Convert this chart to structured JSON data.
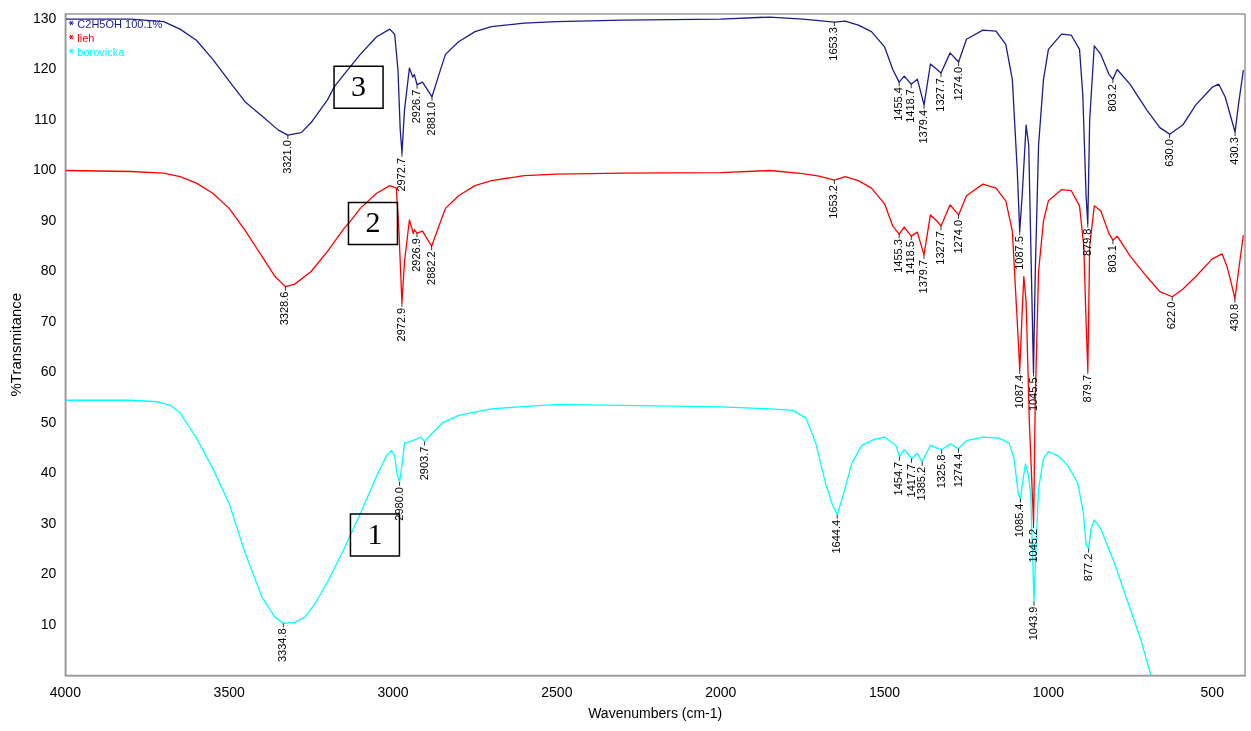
{
  "chart_data": {
    "type": "line",
    "xlabel": "Wavenumbers (cm-1)",
    "ylabel": "%Transmitance",
    "xlim": [
      4000,
      400
    ],
    "xticks": [
      4000,
      3500,
      3000,
      2500,
      2000,
      1500,
      1000,
      500
    ],
    "ylim": [
      0,
      131
    ],
    "yticks": [
      10,
      20,
      30,
      40,
      50,
      60,
      70,
      80,
      90,
      100,
      110,
      120,
      130
    ],
    "grid": false,
    "legend": "top left",
    "series": [
      {
        "name": "C2H5OH 100.1%",
        "color": "#1c1c8c",
        "x": [
          4000,
          3800,
          3700,
          3650,
          3600,
          3550,
          3500,
          3450,
          3400,
          3350,
          3321,
          3280,
          3250,
          3200,
          3180,
          3150,
          3100,
          3050,
          3010,
          2995,
          2985,
          2978,
          2972.7,
          2965,
          2950,
          2940,
          2935,
          2926.7,
          2910,
          2881,
          2860,
          2840,
          2800,
          2750,
          2700,
          2600,
          2500,
          2300,
          2000,
          1850,
          1750,
          1700,
          1653.3,
          1620,
          1580,
          1540,
          1500,
          1475,
          1455.4,
          1440,
          1418.7,
          1400,
          1379.4,
          1360,
          1340,
          1327.7,
          1300,
          1274,
          1250,
          1200,
          1160,
          1130,
          1110,
          1095,
          1087.5,
          1080,
          1068,
          1060,
          1052,
          1045.5,
          1040,
          1030,
          1015,
          1000,
          960,
          930,
          905,
          895,
          885,
          879.8,
          874,
          860,
          840,
          815,
          803.2,
          790,
          750,
          700,
          660,
          630,
          590,
          550,
          500,
          480,
          460,
          445,
          430.3,
          420,
          405
        ],
        "values": [
          130,
          130,
          129.5,
          128,
          125.8,
          122,
          117.7,
          113.5,
          110.8,
          108,
          107,
          107.5,
          109.5,
          114,
          116.5,
          119,
          123,
          126.5,
          128,
          127,
          120,
          108,
          103.5,
          112,
          120.3,
          118.5,
          119,
          117,
          117.5,
          114.6,
          119,
          123,
          125.5,
          127.5,
          128.5,
          129.2,
          129.5,
          129.8,
          130,
          130.4,
          130,
          129.7,
          129.4,
          129.6,
          128.8,
          127.5,
          124.5,
          120,
          117.5,
          118.7,
          117.1,
          118.1,
          113,
          121.1,
          120,
          119.3,
          123.3,
          121.5,
          126,
          127.8,
          127.6,
          125,
          118,
          100,
          88,
          95,
          109,
          105,
          80,
          60,
          80,
          105,
          118,
          124,
          127,
          126.8,
          124,
          115,
          95,
          89.5,
          110,
          124.7,
          123,
          119,
          118.1,
          120,
          117,
          112,
          108.5,
          107.2,
          109,
          113,
          116.5,
          117.1,
          114.5,
          111,
          107.6,
          113,
          119.9
        ]
      },
      {
        "name": "lieh",
        "color": "#ff0000",
        "x": [
          4000,
          3800,
          3700,
          3650,
          3600,
          3550,
          3500,
          3450,
          3400,
          3360,
          3328.6,
          3300,
          3250,
          3200,
          3150,
          3136,
          3100,
          3050,
          3010,
          2990,
          2982,
          2972.9,
          2965,
          2950,
          2938,
          2935,
          2926.9,
          2910,
          2882.2,
          2860,
          2840,
          2800,
          2750,
          2700,
          2600,
          2500,
          2300,
          2000,
          1850,
          1750,
          1700,
          1653.2,
          1620,
          1580,
          1540,
          1500,
          1475,
          1455.3,
          1440,
          1418.5,
          1400,
          1379.7,
          1360,
          1340,
          1327.7,
          1300,
          1274,
          1250,
          1200,
          1160,
          1130,
          1110,
          1095,
          1087.4,
          1080,
          1075,
          1068,
          1058,
          1045.2,
          1040,
          1030,
          1015,
          1000,
          960,
          930,
          905,
          892,
          885,
          879.7,
          874,
          860,
          840,
          815,
          803.1,
          790,
          750,
          700,
          660,
          622,
          590,
          550,
          500,
          470,
          455,
          443,
          430.8,
          420,
          405
        ],
        "values": [
          100,
          99.8,
          99.5,
          98.8,
          97.5,
          95.5,
          92.5,
          88,
          83,
          79,
          77,
          77.5,
          80,
          84,
          88.5,
          89.5,
          92.5,
          95.5,
          97,
          96.5,
          88,
          73.8,
          82,
          90.2,
          87.5,
          88.3,
          87.6,
          88,
          85,
          89,
          92.5,
          95,
          97,
          98,
          99,
          99.3,
          99.5,
          99.6,
          100,
          99.4,
          98.9,
          98.1,
          98.8,
          98,
          96.5,
          93.4,
          89,
          87.4,
          88.8,
          87,
          87.8,
          83.3,
          91.2,
          90,
          89,
          93.2,
          91.2,
          95,
          97.3,
          96.5,
          94,
          88,
          70,
          60.5,
          72,
          79,
          74,
          50,
          30,
          55,
          80,
          90,
          94,
          96.2,
          96,
          93,
          85,
          70,
          60.5,
          85,
          93,
          92,
          87.5,
          86.2,
          87,
          83,
          79,
          76,
          75,
          76.5,
          79,
          82.5,
          83.5,
          81,
          78,
          74.6,
          80,
          87.2
        ]
      },
      {
        "name": "borovicka",
        "color": "#00ffff",
        "x": [
          4000,
          3800,
          3720,
          3680,
          3650,
          3620,
          3600,
          3550,
          3500,
          3450,
          3400,
          3360,
          3334.8,
          3300,
          3270,
          3240,
          3200,
          3150,
          3130,
          3100,
          3050,
          3020,
          3005,
          2995,
          2988,
          2980,
          2972,
          2965,
          2940,
          2915,
          2903.7,
          2880,
          2850,
          2800,
          2700,
          2500,
          2300,
          2000,
          1850,
          1780,
          1740,
          1710,
          1680,
          1660,
          1644.4,
          1625,
          1600,
          1570,
          1530,
          1500,
          1475,
          1465,
          1454.7,
          1440,
          1430,
          1417.7,
          1400,
          1385.2,
          1360,
          1340,
          1325.8,
          1300,
          1290,
          1274.4,
          1250,
          1200,
          1150,
          1120,
          1105,
          1092,
          1085.4,
          1078,
          1070,
          1062,
          1054,
          1043.9,
          1038,
          1030,
          1015,
          1000,
          970,
          940,
          910,
          893,
          885,
          877.2,
          870,
          860,
          840,
          800,
          760,
          720,
          687
        ],
        "values": [
          54.5,
          54.5,
          54.2,
          53.5,
          52,
          49,
          47,
          41,
          34,
          24,
          15.5,
          11.5,
          10.3,
          10.5,
          11.5,
          14,
          18.5,
          25,
          27.8,
          32,
          39.5,
          43.5,
          44.5,
          43.5,
          40,
          38.3,
          42,
          46,
          46.5,
          47.2,
          46.3,
          48,
          50,
          51.5,
          52.8,
          53.7,
          53.5,
          53.2,
          52.8,
          52.5,
          51,
          46,
          38,
          34,
          31.8,
          36,
          42,
          45.5,
          46.8,
          47.2,
          46,
          45.5,
          43.3,
          44.7,
          44,
          42.9,
          44,
          42.3,
          45.6,
          45,
          44.7,
          45.8,
          45.5,
          44.9,
          46.5,
          47.2,
          47,
          46,
          43,
          36,
          35,
          38.5,
          41.9,
          40,
          36,
          14.6,
          25,
          37,
          43,
          44.3,
          43.5,
          41.5,
          38,
          32,
          26,
          25.1,
          29,
          30.8,
          29,
          22.5,
          15,
          7.5,
          0
        ]
      }
    ],
    "annotations": [
      {
        "text": "3321.0",
        "x": 3321,
        "y": 107
      },
      {
        "text": "2972.7",
        "x": 2972.7,
        "y": 103.5
      },
      {
        "text": "2926.7",
        "x": 2926.7,
        "y": 117
      },
      {
        "text": "2881.0",
        "x": 2881,
        "y": 114.6
      },
      {
        "text": "1653.3",
        "x": 1653.3,
        "y": 129.4
      },
      {
        "text": "1455.4",
        "x": 1455.4,
        "y": 117.5
      },
      {
        "text": "1418.7",
        "x": 1418.7,
        "y": 117.1
      },
      {
        "text": "1379.4",
        "x": 1379.4,
        "y": 113
      },
      {
        "text": "1327.7",
        "x": 1327.7,
        "y": 119.3
      },
      {
        "text": "1274.0",
        "x": 1274,
        "y": 121.5
      },
      {
        "text": "1087.5",
        "x": 1087.5,
        "y": 88
      },
      {
        "text": "1045.5",
        "x": 1045.5,
        "y": 60
      },
      {
        "text": "879.8",
        "x": 879.8,
        "y": 89.5
      },
      {
        "text": "803.2",
        "x": 803.2,
        "y": 118.1
      },
      {
        "text": "630.0",
        "x": 630,
        "y": 107.2
      },
      {
        "text": "430.3",
        "x": 430.3,
        "y": 107.6
      },
      {
        "text": "3328.6",
        "x": 3328.6,
        "y": 77
      },
      {
        "text": "2972.9",
        "x": 2972.9,
        "y": 73.8
      },
      {
        "text": "2926.9",
        "x": 2926.9,
        "y": 87.6
      },
      {
        "text": "2882.2",
        "x": 2882.2,
        "y": 85
      },
      {
        "text": "1653.2",
        "x": 1653.2,
        "y": 98.1
      },
      {
        "text": "1455.3",
        "x": 1455.3,
        "y": 87.4
      },
      {
        "text": "1418.5",
        "x": 1418.5,
        "y": 87
      },
      {
        "text": "1379.7",
        "x": 1379.7,
        "y": 83.3
      },
      {
        "text": "1327.7",
        "x": 1327.7,
        "y": 89
      },
      {
        "text": "1274.0",
        "x": 1274,
        "y": 91.2
      },
      {
        "text": "1087.4",
        "x": 1087.4,
        "y": 60.5
      },
      {
        "text": "879.7",
        "x": 879.7,
        "y": 60.5
      },
      {
        "text": "803.1",
        "x": 803.1,
        "y": 86.2
      },
      {
        "text": "622.0",
        "x": 622,
        "y": 75
      },
      {
        "text": "430.8",
        "x": 430.8,
        "y": 74.6
      },
      {
        "text": "3334.8",
        "x": 3334.8,
        "y": 10.3
      },
      {
        "text": "2980.0",
        "x": 2980,
        "y": 38.3
      },
      {
        "text": "2903.7",
        "x": 2903.7,
        "y": 46.3
      },
      {
        "text": "1644.4",
        "x": 1644.4,
        "y": 31.8
      },
      {
        "text": "1454.7",
        "x": 1454.7,
        "y": 43.3
      },
      {
        "text": "1417.7",
        "x": 1417.7,
        "y": 42.9
      },
      {
        "text": "1385.2",
        "x": 1385.2,
        "y": 42.3
      },
      {
        "text": "1325.8",
        "x": 1325.8,
        "y": 44.7
      },
      {
        "text": "1274.4",
        "x": 1274.4,
        "y": 44.9
      },
      {
        "text": "1085.4",
        "x": 1085.4,
        "y": 35
      },
      {
        "text": "1045.2",
        "x": 1045.2,
        "y": 30
      },
      {
        "text": "1043.9",
        "x": 1043.9,
        "y": 14.6
      },
      {
        "text": "877.2",
        "x": 877.2,
        "y": 25.1
      },
      {
        "text": "3",
        "x": 3180,
        "y": 116.5
      },
      {
        "text": "2",
        "x": 3136,
        "y": 89.5
      },
      {
        "text": "1",
        "x": 3130,
        "y": 27.8
      }
    ]
  }
}
